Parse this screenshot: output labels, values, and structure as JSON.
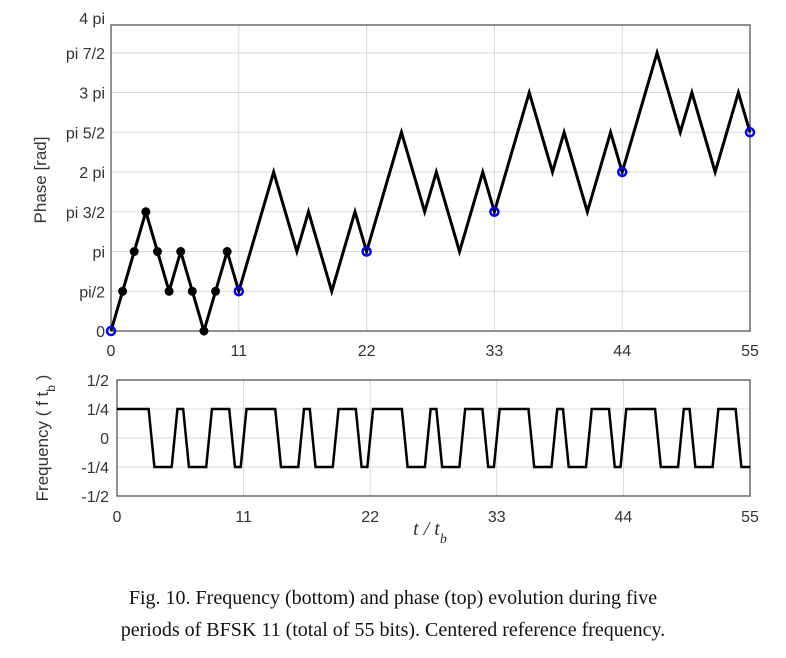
{
  "chart_data": [
    {
      "type": "line",
      "title": "",
      "ylabel": "Phase [rad]",
      "xlabel": "",
      "xlim": [
        0,
        55
      ],
      "ylim_pi": [
        0,
        3.85
      ],
      "xticks": [
        0,
        11,
        22,
        33,
        44,
        55
      ],
      "xtick_labels": [
        "0",
        "11",
        "22",
        "33",
        "44",
        "55"
      ],
      "yticks_pi": [
        0,
        0.5,
        1,
        1.5,
        2,
        2.5,
        3,
        3.5,
        4
      ],
      "ytick_labels": [
        "0",
        "pi/2",
        "pi",
        "pi 3/2",
        "2 pi",
        "pi 5/2",
        "3 pi",
        "pi 7/2",
        "4 pi"
      ],
      "grid": true,
      "bit_pattern": [
        1,
        1,
        1,
        0,
        0,
        1,
        0,
        0,
        1,
        1,
        0
      ],
      "periods": 5,
      "phase_step_pi": 0.5,
      "black_markers_first_period": true,
      "blue_markers_at": [
        0,
        11,
        22,
        33,
        44,
        55
      ],
      "marker_color": "#0000ff",
      "line_color": "#000000"
    },
    {
      "type": "line",
      "ylabel": "Frequency ( f t_b )",
      "xlabel": "t / t_b",
      "xlim": [
        0,
        55
      ],
      "ylim": [
        -0.5,
        0.5
      ],
      "xticks": [
        0,
        11,
        22,
        33,
        44,
        55
      ],
      "xtick_labels": [
        "0",
        "11",
        "22",
        "33",
        "44",
        "55"
      ],
      "yticks": [
        -0.5,
        -0.25,
        0,
        0.25,
        0.5
      ],
      "ytick_labels": [
        "-1/2",
        "-1/4",
        "0",
        "1/4",
        "1/2"
      ],
      "grid": true,
      "levels": {
        "high": 0.25,
        "low": -0.25
      }
    }
  ],
  "caption": {
    "line1": "Fig. 10.    Frequency (bottom) and phase (top) evolution during five",
    "line2": "periods of BFSK 11 (total of 55 bits). Centered reference frequency."
  },
  "labels": {
    "ylabel_freq_main": "Frequency ( f t",
    "ylabel_freq_sub": "b",
    "ylabel_freq_end": " )",
    "xlabel_t": "t / t",
    "xlabel_sub": "b"
  }
}
